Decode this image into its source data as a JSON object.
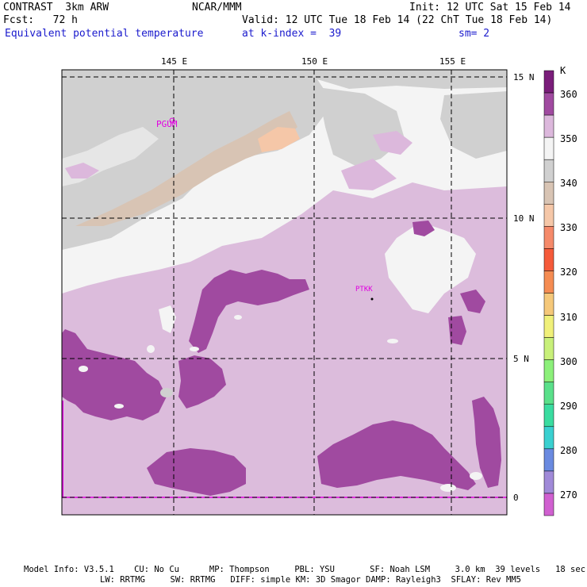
{
  "header": {
    "model": "CONTRAST  3km ARW",
    "center": "NCAR/MMM",
    "init": "Init: 12 UTC Sat 15 Feb 14",
    "fcst": "Fcst:   72 h",
    "valid": "Valid: 12 UTC Tue 18 Feb 14 (22 ChT Tue 18 Feb 14)",
    "field": "Equivalent potential temperature",
    "level": "at k-index =  39",
    "smooth": "sm= 2"
  },
  "axes": {
    "lon_labels": [
      "145 E",
      "150 E",
      "155 E"
    ],
    "lat_labels": [
      "15 N",
      "10 N",
      "5 N",
      "0"
    ]
  },
  "stations": [
    "PGUM",
    "PTKK"
  ],
  "colorbar": {
    "unit": "K",
    "labels": [
      "360",
      "350",
      "340",
      "330",
      "320",
      "310",
      "300",
      "290",
      "280",
      "270"
    ],
    "colors": [
      "#7a1d7a",
      "#a04aa0",
      "#dcb8dc",
      "#f4f4f4",
      "#d0d0d0",
      "#d8c4b4",
      "#f5c7a8",
      "#f58a6a",
      "#f55a3a",
      "#f58c52",
      "#f5c87a",
      "#f0f07a",
      "#c8f07a",
      "#8cf07a",
      "#5ae08a",
      "#3adca0",
      "#3ad0d0",
      "#6a8ae0",
      "#a08ad8",
      "#d060d0"
    ]
  },
  "footer": {
    "line1": "Model Info: V3.5.1    CU: No Cu      MP: Thompson     PBL: YSU       SF: Noah LSM     3.0 km  39 levels   18 sec",
    "line2": "LW: RRTMG     SW: RRTMG   DIFF: simple KM: 3D Smagor DAMP: Rayleigh3  SFLAY: Rev MM5"
  }
}
